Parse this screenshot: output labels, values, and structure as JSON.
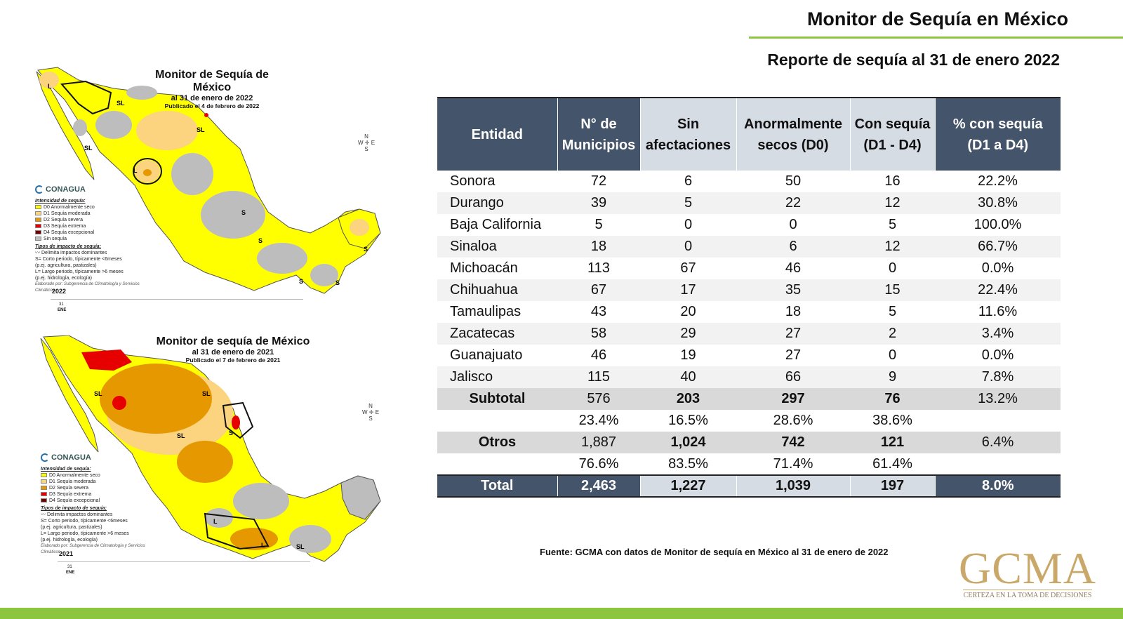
{
  "header": {
    "title": "Monitor de Sequía en México",
    "subtitle": "Reporte de sequía al 31 de enero 2022"
  },
  "colors": {
    "header_dark": "#44546a",
    "header_light": "#d6dce4",
    "accent_green": "#8cc63f",
    "gold": "#c9a86a",
    "d0": "#ffff00",
    "d1": "#fcd37f",
    "d2": "#e69800",
    "d3": "#e60000",
    "d4": "#730000",
    "none": "#bdbdbd"
  },
  "map_2022": {
    "title": "Monitor de Sequía de México",
    "date": "al 31 de enero de 2022",
    "published": "Publicado el 4 de febrero de 2022",
    "year": "2022",
    "day": "31",
    "month": "ENE",
    "labels": [
      "L",
      "SL",
      "SL",
      "SL",
      "L",
      "S",
      "S",
      "S",
      "S",
      "S"
    ]
  },
  "map_2021": {
    "title": "Monitor de sequía de México",
    "date": "al 31 de enero de 2021",
    "published": "Publicado el 7 de febrero de 2021",
    "year": "2021",
    "day": "31",
    "month": "ENE",
    "labels": [
      "SL",
      "SL",
      "S",
      "SL",
      "L",
      "L",
      "SL"
    ]
  },
  "legend": {
    "brand": "CONAGUA",
    "intensity_head": "Intensidad de sequía:",
    "items": [
      {
        "code": "d0",
        "label": "D0 Anormalmente seco"
      },
      {
        "code": "d1",
        "label": "D1 Sequía moderada"
      },
      {
        "code": "d2",
        "label": "D2 Sequía severa"
      },
      {
        "code": "d3",
        "label": "D3 Sequía extrema"
      },
      {
        "code": "d4",
        "label": "D4 Sequía excepcional"
      },
      {
        "code": "none",
        "label": "Sin sequía"
      }
    ],
    "impact_head": "Tipos de impacto de sequía:",
    "impact_line": "Delimita impactos dominantes",
    "impact_s": "S= Corto periodo, típicamente <6meses",
    "impact_s2": "(p.ej. agricultura, pastizales)",
    "impact_l": "L= Largo periodo, típicamente >6 meses",
    "impact_l2": "(p.ej. hidrología, ecología)",
    "note": "Elaborado por: Subgerencia de Climatología y Servicios Climáticos"
  },
  "compass": {
    "n": "N",
    "s": "S",
    "e": "E",
    "w": "W"
  },
  "chart_data": {
    "type": "table",
    "columns": [
      "Entidad",
      "N° de Municipios",
      "Sin afectaciones",
      "Anormalmente secos (D0)",
      "Con sequía (D1 - D4)",
      "% con sequía (D1 a D4)"
    ],
    "header_lines": [
      [
        "Entidad"
      ],
      [
        "N° de",
        "Municipios"
      ],
      [
        "Sin",
        "afectaciones"
      ],
      [
        "Anormalmente",
        "secos (D0)"
      ],
      [
        "Con sequía",
        "(D1 - D4)"
      ],
      [
        "% con sequía",
        "(D1 a D4)"
      ]
    ],
    "rows": [
      [
        "Sonora",
        "72",
        "6",
        "50",
        "16",
        "22.2%"
      ],
      [
        "Durango",
        "39",
        "5",
        "22",
        "12",
        "30.8%"
      ],
      [
        "Baja California",
        "5",
        "0",
        "0",
        "5",
        "100.0%"
      ],
      [
        "Sinaloa",
        "18",
        "0",
        "6",
        "12",
        "66.7%"
      ],
      [
        "Michoacán",
        "113",
        "67",
        "46",
        "0",
        "0.0%"
      ],
      [
        "Chihuahua",
        "67",
        "17",
        "35",
        "15",
        "22.4%"
      ],
      [
        "Tamaulipas",
        "43",
        "20",
        "18",
        "5",
        "11.6%"
      ],
      [
        "Zacatecas",
        "58",
        "29",
        "27",
        "2",
        "3.4%"
      ],
      [
        "Guanajuato",
        "46",
        "19",
        "27",
        "0",
        "0.0%"
      ],
      [
        "Jalisco",
        "115",
        "40",
        "66",
        "9",
        "7.8%"
      ]
    ],
    "subtotal": [
      "Subtotal",
      "576",
      "203",
      "297",
      "76",
      "13.2%"
    ],
    "subtotal_pct": [
      "",
      "23.4%",
      "16.5%",
      "28.6%",
      "38.6%",
      ""
    ],
    "otros": [
      "Otros",
      "1,887",
      "1,024",
      "742",
      "121",
      "6.4%"
    ],
    "otros_pct": [
      "",
      "76.6%",
      "83.5%",
      "71.4%",
      "61.4%",
      ""
    ],
    "total": [
      "Total",
      "2,463",
      "1,227",
      "1,039",
      "197",
      "8.0%"
    ]
  },
  "source": "Fuente: GCMA con datos de Monitor de sequía en México al 31 de enero de 2022",
  "brand": {
    "logo": "GCMA",
    "tagline": "CERTEZA EN LA TOMA DE DECISIONES"
  }
}
